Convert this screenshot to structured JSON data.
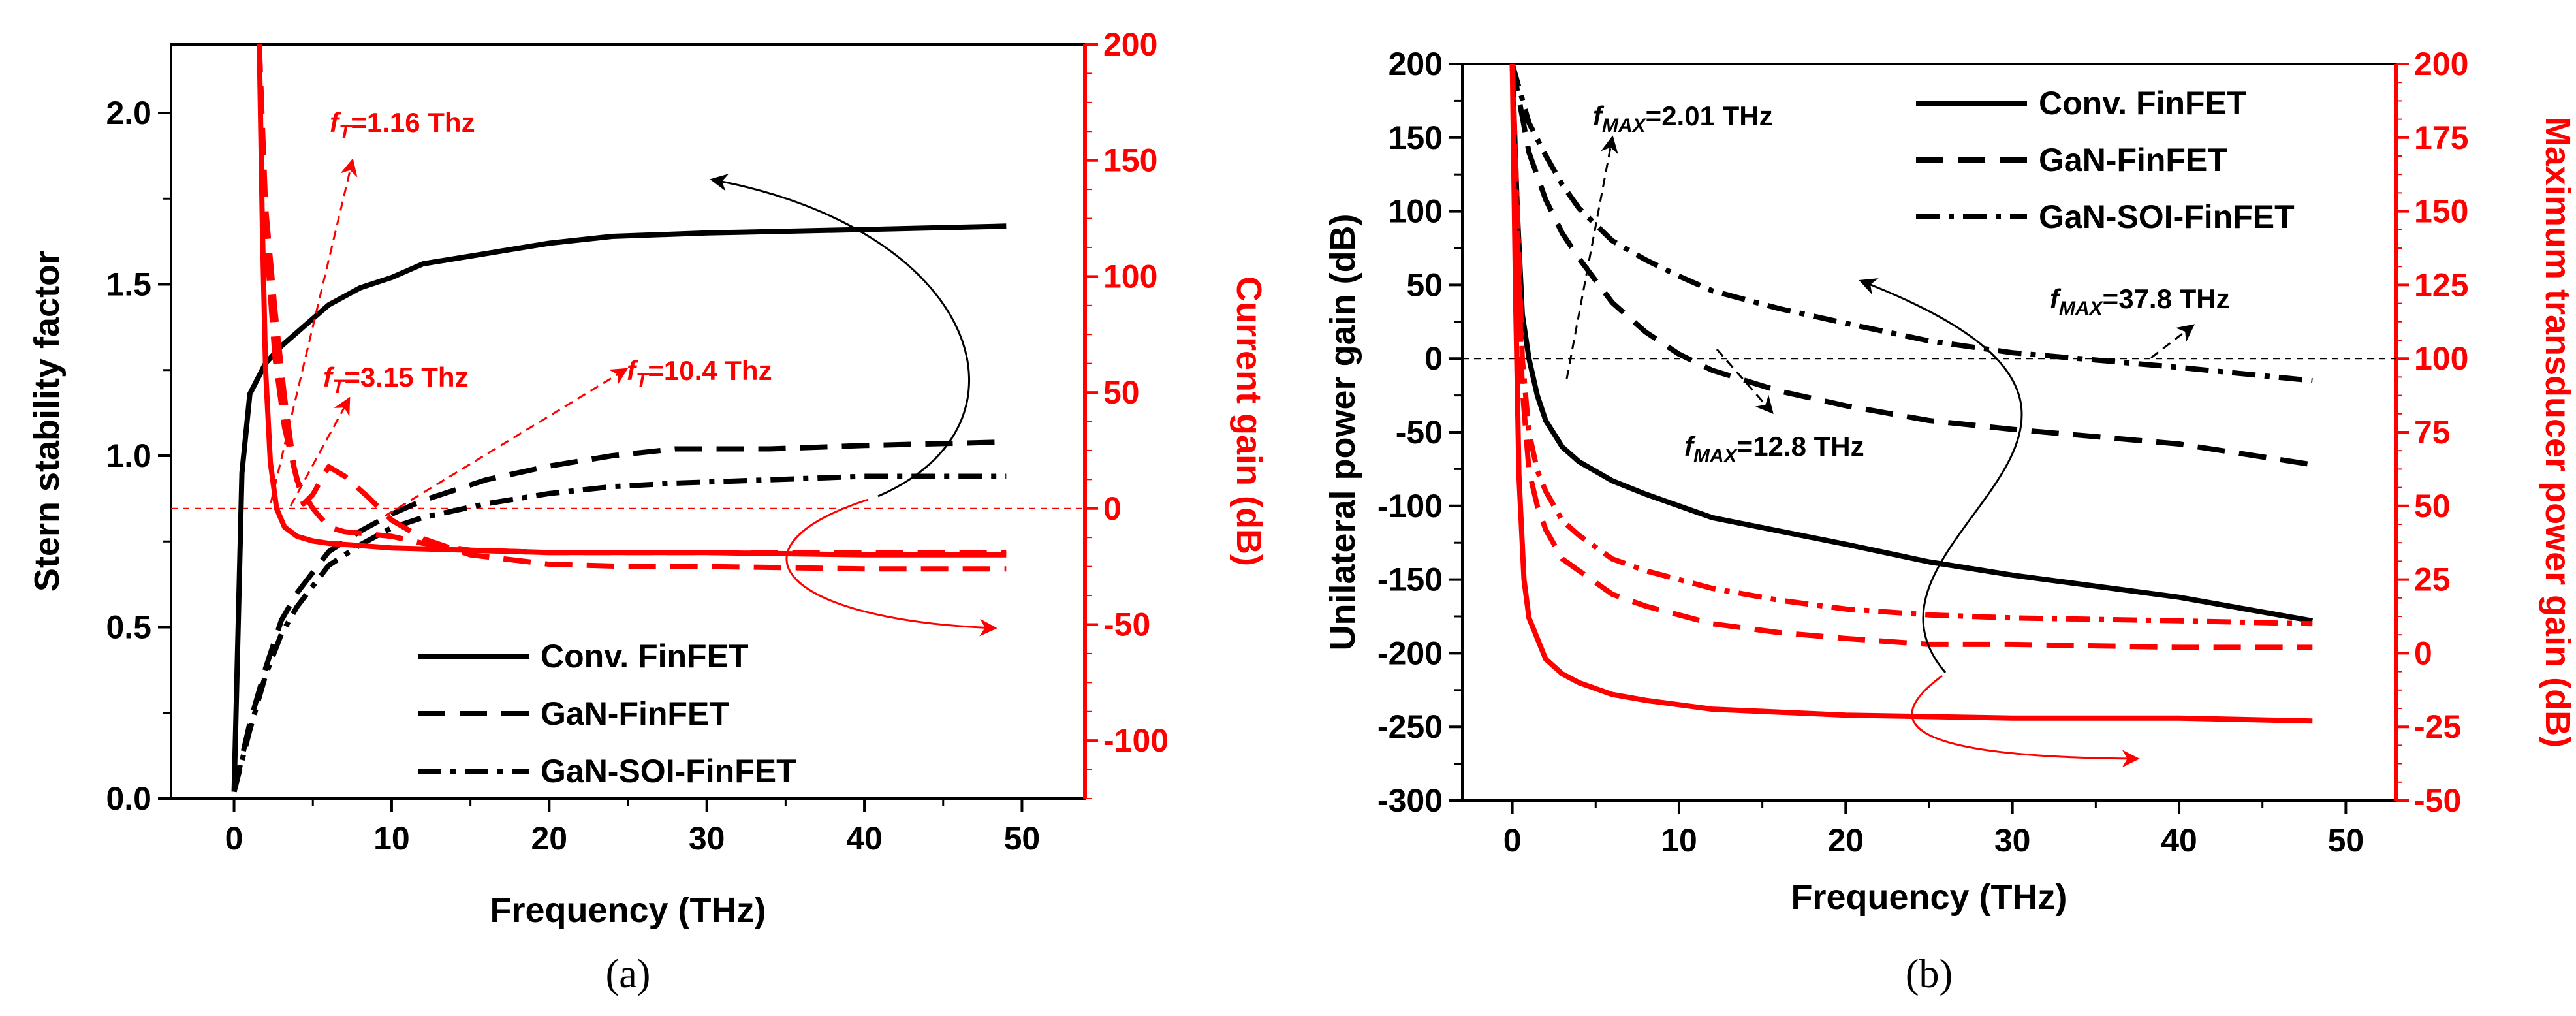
{
  "chart_data": [
    {
      "type": "line",
      "panel_label": "(a)",
      "xlabel": "Frequency (THz)",
      "ylabel": "Stern stability factor",
      "y2label": "Current gain (dB)",
      "xlim": [
        -4,
        54
      ],
      "xticks": [
        0,
        10,
        20,
        30,
        40,
        50
      ],
      "ylim": [
        0,
        2.2
      ],
      "yticks": [
        0.0,
        0.5,
        1.0,
        1.5,
        2.0
      ],
      "ytick_labels": [
        "0.0",
        "0.5",
        "1.0",
        "1.5",
        "2.0"
      ],
      "y2lim": [
        -125,
        200
      ],
      "y2ticks": [
        -100,
        -50,
        0,
        50,
        100,
        150,
        200
      ],
      "legend": [
        "Conv. FinFET",
        "GaN-FinFET",
        "GaN-SOI-FinFET"
      ],
      "legend_position": "bottom-center",
      "reference_line": {
        "axis": "right",
        "value": 0,
        "color": "#ff0000",
        "style": "dashed"
      },
      "series": [
        {
          "name": "Conv. FinFET",
          "axis": "left",
          "color": "#000000",
          "dash": "solid",
          "x": [
            0,
            0.5,
            1,
            2,
            3,
            4,
            6,
            8,
            10,
            12,
            16,
            20,
            24,
            30,
            40,
            49
          ],
          "y": [
            0.02,
            0.95,
            1.18,
            1.27,
            1.32,
            1.36,
            1.44,
            1.49,
            1.52,
            1.56,
            1.59,
            1.62,
            1.64,
            1.65,
            1.66,
            1.67
          ]
        },
        {
          "name": "GaN-FinFET",
          "axis": "left",
          "color": "#000000",
          "dash": "dashed",
          "x": [
            0,
            1,
            2,
            3,
            4,
            6,
            8,
            10,
            12,
            16,
            20,
            24,
            28,
            34,
            40,
            49
          ],
          "y": [
            0.02,
            0.22,
            0.38,
            0.52,
            0.6,
            0.72,
            0.78,
            0.83,
            0.87,
            0.93,
            0.97,
            1.0,
            1.02,
            1.02,
            1.03,
            1.04
          ]
        },
        {
          "name": "GaN-SOI-FinFET",
          "axis": "left",
          "color": "#000000",
          "dash": "dashdot",
          "x": [
            0,
            1,
            2,
            3,
            4,
            6,
            8,
            10,
            12,
            16,
            20,
            24,
            28,
            34,
            40,
            49
          ],
          "y": [
            0.02,
            0.2,
            0.36,
            0.48,
            0.56,
            0.68,
            0.74,
            0.79,
            0.82,
            0.86,
            0.89,
            0.91,
            0.92,
            0.93,
            0.94,
            0.94
          ]
        },
        {
          "name": "Conv. FinFET",
          "axis": "right",
          "color": "#ff0000",
          "dash": "solid",
          "x": [
            1.6,
            1.8,
            2.0,
            2.3,
            2.7,
            3.2,
            4,
            5,
            6,
            8,
            10,
            15,
            20,
            30,
            40,
            49
          ],
          "y": [
            200,
            120,
            60,
            20,
            0,
            -8,
            -12,
            -14,
            -15,
            -16,
            -17,
            -18,
            -19,
            -19,
            -20,
            -20
          ]
        },
        {
          "name": "GaN-FinFET",
          "axis": "right",
          "color": "#ff0000",
          "dash": "dashed",
          "x": [
            1.6,
            2.0,
            2.6,
            3.2,
            3.8,
            4.4,
            5.0,
            6.0,
            7.0,
            8.5,
            10,
            12,
            15,
            20,
            25,
            30,
            40,
            49
          ],
          "y": [
            200,
            130,
            85,
            48,
            18,
            2,
            6,
            18,
            14,
            5,
            -5,
            -13,
            -20,
            -24,
            -25,
            -25,
            -26,
            -26
          ]
        },
        {
          "name": "GaN-SOI-FinFET",
          "axis": "right",
          "color": "#ff0000",
          "dash": "dashed",
          "x": [
            1.6,
            2.0,
            2.6,
            3.2,
            4.0,
            5.0,
            6.0,
            7.0,
            8.5,
            10,
            12,
            15,
            20,
            25,
            30,
            40,
            49
          ],
          "y": [
            200,
            120,
            65,
            35,
            12,
            0,
            -8,
            -10,
            -11,
            -12,
            -15,
            -18,
            -19,
            -19,
            -19,
            -19,
            -19
          ]
        }
      ],
      "annotations": [
        {
          "sym": "f",
          "sub": "T",
          "text": "=1.16 Thz",
          "color": "#ff0000"
        },
        {
          "sym": "f",
          "sub": "T",
          "text": "=3.15 Thz",
          "color": "#ff0000"
        },
        {
          "sym": "f",
          "sub": "T",
          "text": "=10.4 Thz",
          "color": "#ff0000"
        }
      ]
    },
    {
      "type": "line",
      "panel_label": "(b)",
      "xlabel": "Frequency (THz)",
      "ylabel": "Unilateral power gain (dB)",
      "y2label": "Maximum transducer power gain (dB)",
      "xlim": [
        -3,
        53
      ],
      "xticks": [
        0,
        10,
        20,
        30,
        40,
        50
      ],
      "ylim": [
        -300,
        200
      ],
      "yticks": [
        -300,
        -250,
        -200,
        -150,
        -100,
        -50,
        0,
        50,
        100,
        150,
        200
      ],
      "y2lim": [
        -50,
        200
      ],
      "y2ticks": [
        -50,
        -25,
        0,
        25,
        50,
        75,
        100,
        125,
        150,
        175,
        200
      ],
      "legend": [
        "Conv. FinFET",
        "GaN-FinFET",
        "GaN-SOI-FinFET"
      ],
      "legend_position": "top-right",
      "reference_line": {
        "axis": "left",
        "value": 0,
        "color": "#000000",
        "style": "dashed"
      },
      "series": [
        {
          "name": "Conv. FinFET",
          "axis": "left",
          "color": "#000000",
          "dash": "solid",
          "x": [
            0,
            0.3,
            0.6,
            1.0,
            1.5,
            2,
            3,
            4,
            6,
            8,
            12,
            16,
            20,
            25,
            30,
            40,
            48
          ],
          "y": [
            200,
            100,
            30,
            0,
            -25,
            -42,
            -60,
            -70,
            -83,
            -92,
            -108,
            -117,
            -126,
            -138,
            -147,
            -162,
            -178
          ]
        },
        {
          "name": "GaN-FinFET",
          "axis": "left",
          "color": "#000000",
          "dash": "dashed",
          "x": [
            0,
            0.5,
            1,
            2,
            3,
            4,
            6,
            8,
            10,
            12,
            16,
            20,
            25,
            30,
            40,
            48
          ],
          "y": [
            200,
            170,
            140,
            108,
            85,
            68,
            38,
            18,
            3,
            -8,
            -22,
            -32,
            -42,
            -48,
            -58,
            -72
          ]
        },
        {
          "name": "GaN-SOI-FinFET",
          "axis": "left",
          "color": "#000000",
          "dash": "dashdot",
          "x": [
            0,
            0.5,
            1,
            2,
            3,
            4,
            6,
            8,
            10,
            12,
            16,
            20,
            25,
            30,
            40,
            48
          ],
          "y": [
            200,
            180,
            160,
            138,
            118,
            102,
            80,
            67,
            56,
            46,
            34,
            24,
            12,
            4,
            -6,
            -15
          ]
        },
        {
          "name": "Conv. FinFET",
          "axis": "right",
          "color": "#ff0000",
          "dash": "solid",
          "x": [
            0,
            0.2,
            0.4,
            0.7,
            1.0,
            1.5,
            2,
            3,
            4,
            6,
            8,
            12,
            20,
            30,
            40,
            48
          ],
          "y": [
            200,
            120,
            60,
            25,
            12,
            5,
            -2,
            -7,
            -10,
            -14,
            -16,
            -19,
            -21,
            -22,
            -22,
            -23
          ]
        },
        {
          "name": "GaN-FinFET",
          "axis": "right",
          "color": "#ff0000",
          "dash": "dashed",
          "x": [
            0,
            0.3,
            0.6,
            1.0,
            1.5,
            2,
            3,
            4,
            6,
            8,
            12,
            16,
            20,
            25,
            30,
            40,
            48
          ],
          "y": [
            200,
            140,
            90,
            62,
            50,
            42,
            32,
            28,
            20,
            16,
            10,
            7,
            5,
            3,
            3,
            2,
            2
          ]
        },
        {
          "name": "GaN-SOI-FinFET",
          "axis": "right",
          "color": "#ff0000",
          "dash": "dashdot",
          "x": [
            0,
            0.3,
            0.6,
            1.0,
            1.5,
            2,
            3,
            4,
            6,
            8,
            12,
            16,
            20,
            25,
            30,
            40,
            48
          ],
          "y": [
            200,
            150,
            100,
            75,
            62,
            55,
            45,
            40,
            32,
            28,
            22,
            18,
            15,
            13,
            12,
            11,
            10
          ]
        }
      ],
      "annotations": [
        {
          "sym": "f",
          "sub": "MAX",
          "text": "=2.01 THz",
          "color": "#000000"
        },
        {
          "sym": "f",
          "sub": "MAX",
          "text": "=37.8 THz",
          "color": "#000000"
        },
        {
          "sym": "f",
          "sub": "MAX",
          "text": "=12.8 THz",
          "color": "#000000"
        }
      ]
    }
  ]
}
